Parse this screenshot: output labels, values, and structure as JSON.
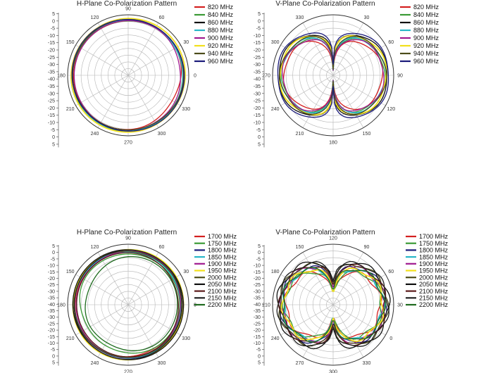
{
  "chart_data": [
    {
      "type": "polar-line",
      "title": "H-Plane Co-Polarization Pattern",
      "orientation": "h",
      "radial_ticks": [
        "5",
        "0",
        "-5",
        "-10",
        "-15",
        "-20",
        "-25",
        "-30",
        "-35",
        "-40",
        "-35",
        "-30",
        "-25",
        "-20",
        "-15",
        "-10",
        "-5",
        "0",
        "5"
      ],
      "angle_labels": [
        "0",
        "30",
        "60",
        "90",
        "120",
        "150",
        "180",
        "210",
        "240",
        "270",
        "300",
        "330"
      ],
      "rlim": [
        -40,
        5
      ],
      "grid": true,
      "legend_position": "right",
      "series": [
        {
          "name": "820 MHz",
          "color": "#d42020",
          "base": 0.5,
          "bump": [
            [
              330,
              -2.5,
              25
            ]
          ]
        },
        {
          "name": "840 MHz",
          "color": "#3a9a35",
          "base": 0.8,
          "bump": [
            [
              240,
              1.5,
              30
            ]
          ]
        },
        {
          "name": "860 MHz",
          "color": "#111111",
          "base": 1.3,
          "bump": []
        },
        {
          "name": "880 MHz",
          "color": "#29b7c8",
          "base": 0.9,
          "bump": [
            [
              200,
              2.0,
              30
            ]
          ]
        },
        {
          "name": "900 MHz",
          "color": "#a0198f",
          "base": 0.4,
          "bump": [
            [
              10,
              -1.5,
              20
            ]
          ]
        },
        {
          "name": "920 MHz",
          "color": "#f2e01c",
          "base": 2.3,
          "bump": []
        },
        {
          "name": "940 MHz",
          "color": "#4c4c1a",
          "base": 0.9,
          "bump": [
            [
              90,
              1.0,
              30
            ]
          ]
        },
        {
          "name": "960 MHz",
          "color": "#1a1a7a",
          "base": 1.6,
          "bump": []
        }
      ]
    },
    {
      "type": "polar-line",
      "title": "V-Plane Co-Polarization Pattern",
      "orientation": "v",
      "radial_ticks": [
        "5",
        "0",
        "-5",
        "-10",
        "-15",
        "-20",
        "-25",
        "-30",
        "-35",
        "-40",
        "-35",
        "-30",
        "-25",
        "-20",
        "-15",
        "-10",
        "-5",
        "0",
        "5"
      ],
      "angle_labels": [
        "330",
        "30",
        "60",
        "90",
        "120",
        "150",
        "180",
        "210",
        "240",
        "270",
        "300"
      ],
      "rlim": [
        -40,
        5
      ],
      "grid": true,
      "legend_position": "right",
      "series": [
        {
          "name": "820 MHz",
          "color": "#d42020",
          "peak": -3.5,
          "nullfloor": -36,
          "sharp": 1.3
        },
        {
          "name": "840 MHz",
          "color": "#3a9a35",
          "peak": -2.0,
          "nullfloor": -38,
          "sharp": 1.2
        },
        {
          "name": "860 MHz",
          "color": "#111111",
          "peak": 0.5,
          "nullfloor": -30,
          "sharp": 1.0
        },
        {
          "name": "880 MHz",
          "color": "#29b7c8",
          "peak": -1.5,
          "nullfloor": -38,
          "sharp": 1.2
        },
        {
          "name": "900 MHz",
          "color": "#a0198f",
          "peak": -2.5,
          "nullfloor": -37,
          "sharp": 1.2
        },
        {
          "name": "920 MHz",
          "color": "#f2e01c",
          "peak": -0.5,
          "nullfloor": -35,
          "sharp": 1.0
        },
        {
          "name": "940 MHz",
          "color": "#4c4c1a",
          "peak": -1.0,
          "nullfloor": -36,
          "sharp": 1.1
        },
        {
          "name": "960 MHz",
          "color": "#1a1a7a",
          "peak": 1.5,
          "nullfloor": -32,
          "sharp": 0.9
        }
      ]
    },
    {
      "type": "polar-line",
      "title": "H-Plane Co-Polarization Pattern",
      "orientation": "h",
      "radial_ticks": [
        "5",
        "0",
        "-5",
        "-10",
        "-15",
        "-20",
        "-25",
        "-30",
        "-35",
        "-40",
        "-35",
        "-30",
        "-25",
        "-20",
        "-15",
        "-10",
        "-5",
        "0",
        "5"
      ],
      "angle_labels": [
        "0",
        "30",
        "60",
        "90",
        "120",
        "150",
        "180",
        "210",
        "240",
        "270",
        "300",
        "330"
      ],
      "rlim": [
        -40,
        5
      ],
      "grid": true,
      "legend_position": "right",
      "series": [
        {
          "name": "1700 MHz",
          "color": "#d42020",
          "base": -0.5,
          "bump": [
            [
              300,
              -1.5,
              30
            ]
          ]
        },
        {
          "name": "1750 MHz",
          "color": "#3a9a35",
          "base": -2.0,
          "bump": [
            [
              200,
              -3.5,
              25
            ],
            [
              250,
              -2.5,
              25
            ]
          ]
        },
        {
          "name": "1800 MHz",
          "color": "#1a1a7a",
          "base": 0.0,
          "bump": []
        },
        {
          "name": "1850 MHz",
          "color": "#29b7c8",
          "base": -0.8,
          "bump": [
            [
              180,
              1.0,
              30
            ]
          ]
        },
        {
          "name": "1900 MHz",
          "color": "#a0198f",
          "base": -1.0,
          "bump": [
            [
              60,
              1.0,
              30
            ]
          ]
        },
        {
          "name": "1950 MHz",
          "color": "#f2e01c",
          "base": 1.0,
          "bump": []
        },
        {
          "name": "2000 MHz",
          "color": "#4c4c1a",
          "base": -0.5,
          "bump": [
            [
              120,
              1.0,
              30
            ]
          ]
        },
        {
          "name": "2050 MHz",
          "color": "#111111",
          "base": 1.0,
          "bump": []
        },
        {
          "name": "2100 MHz",
          "color": "#5b1a1a",
          "base": -1.5,
          "bump": [
            [
              10,
              -1.0,
              30
            ]
          ]
        },
        {
          "name": "2150 MHz",
          "color": "#222222",
          "base": 0.4,
          "bump": []
        },
        {
          "name": "2200 MHz",
          "color": "#1f6b1f",
          "base": -3.5,
          "bump": [
            [
              160,
              -5.0,
              35
            ],
            [
              240,
              -4.0,
              30
            ]
          ]
        }
      ]
    },
    {
      "type": "polar-line",
      "title": "V-Plane Co-Polarization Pattern",
      "orientation": "v",
      "radial_ticks": [
        "5",
        "0",
        "-5",
        "-10",
        "-15",
        "-20",
        "-25",
        "-30",
        "-35",
        "-40",
        "-35",
        "-30",
        "-25",
        "-20",
        "-15",
        "-10",
        "-5",
        "0",
        "5"
      ],
      "angle_labels": [
        "150",
        "120",
        "90",
        "60",
        "30",
        "0",
        "330",
        "300",
        "270",
        "240",
        "210",
        "180"
      ],
      "rlim": [
        -40,
        5
      ],
      "grid": true,
      "legend_position": "right",
      "series": [
        {
          "name": "1700 MHz",
          "color": "#d42020",
          "peak": -5.0,
          "nullfloor": -30,
          "sharp": 1.3
        },
        {
          "name": "1750 MHz",
          "color": "#3a9a35",
          "peak": -4.0,
          "nullfloor": -28,
          "sharp": 1.4
        },
        {
          "name": "1800 MHz",
          "color": "#1a1a7a",
          "peak": -1.5,
          "nullfloor": -26,
          "sharp": 1.1
        },
        {
          "name": "1850 MHz",
          "color": "#29b7c8",
          "peak": -3.0,
          "nullfloor": -30,
          "sharp": 1.2
        },
        {
          "name": "1900 MHz",
          "color": "#a0198f",
          "peak": -2.0,
          "nullfloor": -27,
          "sharp": 1.1
        },
        {
          "name": "1950 MHz",
          "color": "#f2e01c",
          "peak": -3.0,
          "nullfloor": -30,
          "sharp": 1.2
        },
        {
          "name": "2000 MHz",
          "color": "#4c4c1a",
          "peak": 0.0,
          "nullfloor": -24,
          "sharp": 1.0
        },
        {
          "name": "2050 MHz",
          "color": "#111111",
          "peak": 1.0,
          "nullfloor": -22,
          "sharp": 0.9
        },
        {
          "name": "2100 MHz",
          "color": "#5b1a1a",
          "peak": -1.0,
          "nullfloor": -25,
          "sharp": 1.0
        },
        {
          "name": "2150 MHz",
          "color": "#222222",
          "peak": 0.5,
          "nullfloor": -23,
          "sharp": 0.9
        },
        {
          "name": "2200 MHz",
          "color": "#1f6b1f",
          "peak": -2.5,
          "nullfloor": -28,
          "sharp": 1.2
        }
      ]
    }
  ]
}
